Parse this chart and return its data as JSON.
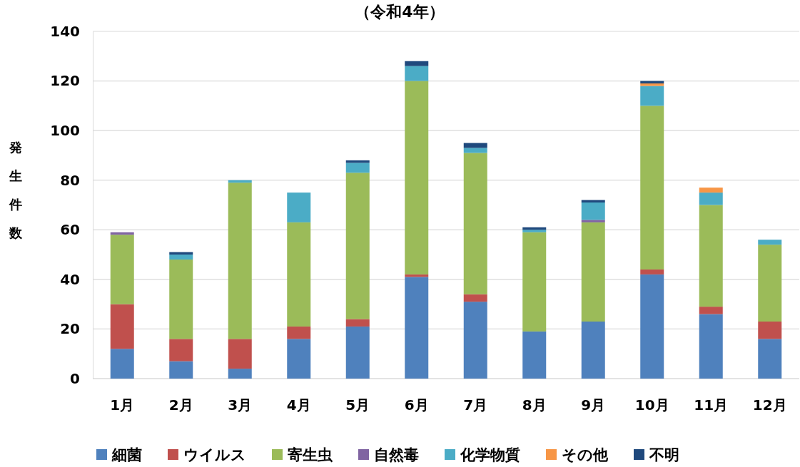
{
  "chart_data": {
    "type": "bar",
    "stacked": true,
    "title": "（令和4年）",
    "ylabel": "発生件数",
    "categories": [
      "1月",
      "2月",
      "3月",
      "4月",
      "5月",
      "6月",
      "7月",
      "8月",
      "9月",
      "10月",
      "11月",
      "12月"
    ],
    "series": [
      {
        "name": "細菌",
        "color": "#4f81bd",
        "values": [
          12,
          7,
          4,
          16,
          21,
          41,
          31,
          19,
          23,
          42,
          26,
          16
        ]
      },
      {
        "name": "ウイルス",
        "color": "#c0504d",
        "values": [
          18,
          9,
          12,
          5,
          3,
          1,
          3,
          null,
          null,
          2,
          3,
          7
        ]
      },
      {
        "name": "寄生虫",
        "color": "#9bbb59",
        "values": [
          28,
          32,
          63,
          42,
          59,
          78,
          57,
          40,
          40,
          66,
          41,
          31
        ]
      },
      {
        "name": "自然毒",
        "color": "#8064a2",
        "values": [
          1,
          null,
          null,
          null,
          null,
          null,
          null,
          null,
          1,
          null,
          null,
          null
        ]
      },
      {
        "name": "化学物質",
        "color": "#4bacc6",
        "values": [
          null,
          2,
          1,
          12,
          4,
          6,
          2,
          1,
          7,
          8,
          5,
          2
        ]
      },
      {
        "name": "その他",
        "color": "#f79646",
        "values": [
          null,
          null,
          null,
          null,
          null,
          null,
          null,
          null,
          null,
          1,
          2,
          null
        ]
      },
      {
        "name": "不明",
        "color": "#1f497d",
        "values": [
          null,
          1,
          null,
          null,
          1,
          2,
          2,
          1,
          1,
          1,
          null,
          null
        ]
      }
    ],
    "ylim": [
      0,
      140
    ],
    "yticks": [
      0,
      20,
      40,
      60,
      80,
      100,
      120,
      140
    ],
    "grid": "y",
    "legend": "bottom"
  }
}
